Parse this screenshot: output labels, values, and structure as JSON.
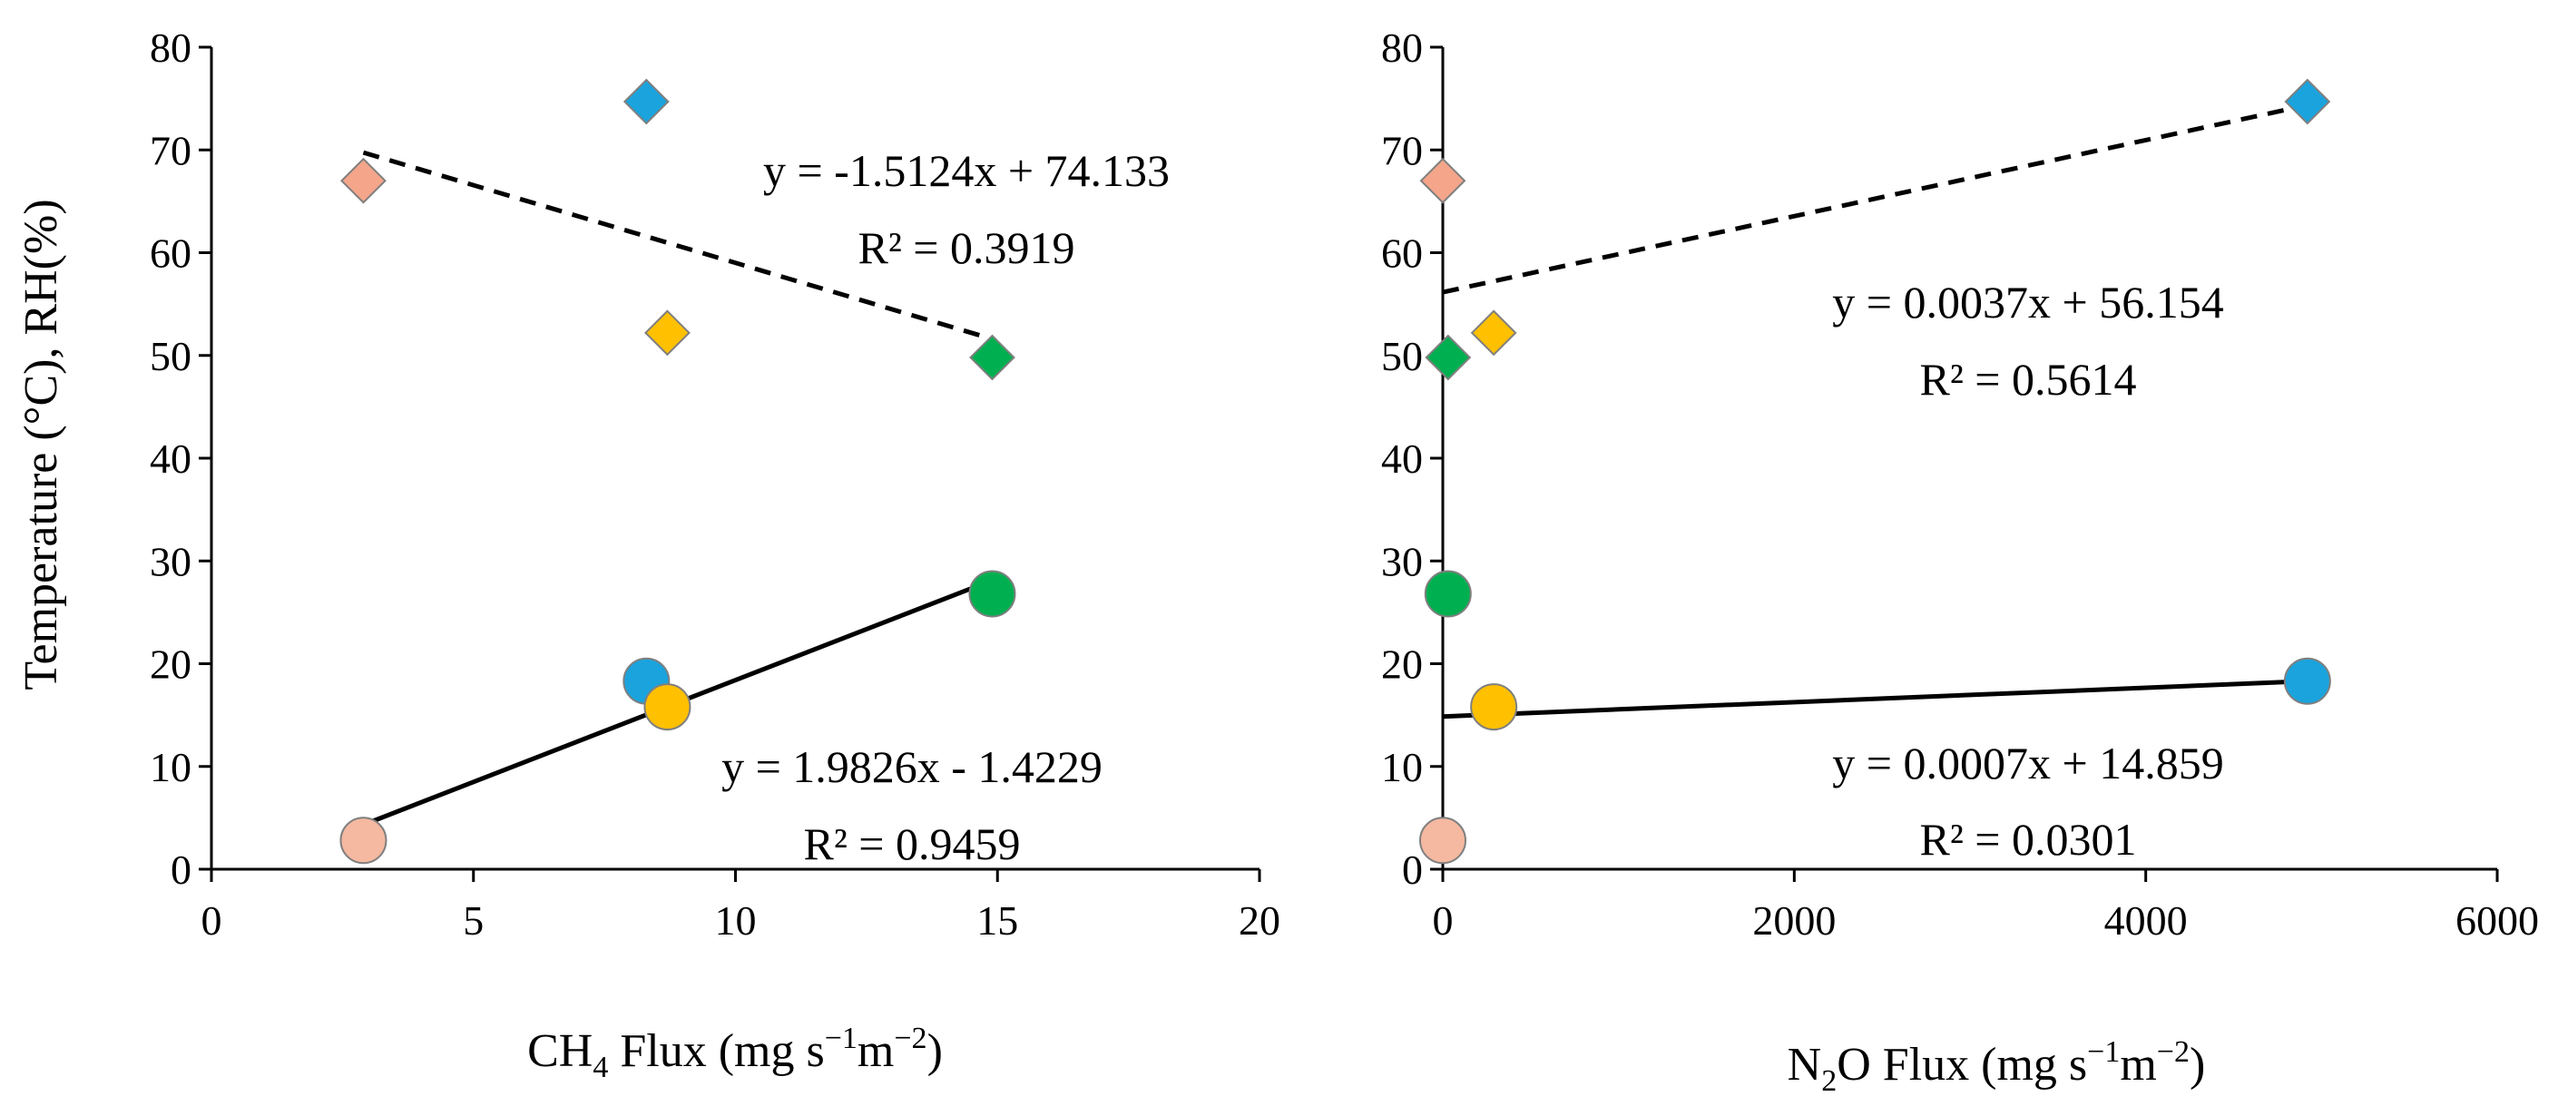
{
  "colors": {
    "winter": "#F5B8A0",
    "winter_diamond": "#F4A58A",
    "spring": "#FFC000",
    "summer": "#1AA3DD",
    "autumn": "#00B050",
    "marker_edge": "#7F7F7F",
    "axis": "#000000",
    "trend": "#000000"
  },
  "y_axis_title": "Temperature (°C), RH(%)",
  "chart_data": [
    {
      "type": "scatter",
      "id": "ch4",
      "xlabel_parts": {
        "a": "CH",
        "sub": "4",
        "b": " Flux (mg s",
        "sup1": "−1",
        "c": "m",
        "sup2": "−2",
        "d": ")"
      },
      "xlim": [
        0,
        20
      ],
      "xticks": [
        0,
        5,
        10,
        15,
        20
      ],
      "xtick_labels": [
        "0",
        "5",
        "10",
        "15",
        "20"
      ],
      "ylim": [
        0,
        80
      ],
      "yticks": [
        0,
        10,
        20,
        30,
        40,
        50,
        60,
        70,
        80
      ],
      "ytick_labels": [
        "0",
        "10",
        "20",
        "30",
        "40",
        "50",
        "60",
        "70",
        "80"
      ],
      "series": [
        {
          "name": "RH",
          "marker": "diamond",
          "points": [
            {
              "x": 2.9,
              "y": 67,
              "color": "#F4A58A"
            },
            {
              "x": 8.3,
              "y": 74.7,
              "color": "#1AA3DD"
            },
            {
              "x": 8.7,
              "y": 52.2,
              "color": "#FFC000"
            },
            {
              "x": 14.9,
              "y": 49.8,
              "color": "#00B050"
            }
          ],
          "trend": {
            "slope": -1.5124,
            "intercept": 74.133,
            "x0": 2.9,
            "x1": 14.9,
            "dashed": true
          },
          "equation": "y = -1.5124x + 74.133",
          "r2": "R² = 0.3919"
        },
        {
          "name": "Temperature",
          "marker": "circle",
          "points": [
            {
              "x": 2.9,
              "y": 2.8,
              "color": "#F5B8A0"
            },
            {
              "x": 8.3,
              "y": 18.3,
              "color": "#1AA3DD"
            },
            {
              "x": 8.7,
              "y": 15.8,
              "color": "#FFC000"
            },
            {
              "x": 14.9,
              "y": 26.8,
              "color": "#00B050"
            }
          ],
          "trend": {
            "slope": 1.9826,
            "intercept": -1.4229,
            "x0": 2.9,
            "x1": 14.9,
            "dashed": false
          },
          "equation": "y = 1.9826x - 1.4229",
          "r2": "R² = 0.9459"
        }
      ]
    },
    {
      "type": "scatter",
      "id": "n2o",
      "xlabel_parts": {
        "a": "N",
        "sub": "2",
        "b": "O Flux (mg s",
        "sup1": "−1",
        "c": "m",
        "sup2": "−2",
        "d": ")"
      },
      "xlim": [
        0,
        6000
      ],
      "xticks": [
        0,
        2000,
        4000,
        6000
      ],
      "xtick_labels": [
        "0",
        "2000",
        "4000",
        "6000"
      ],
      "ylim": [
        0,
        80
      ],
      "yticks": [
        0,
        10,
        20,
        30,
        40,
        50,
        60,
        70,
        80
      ],
      "ytick_labels": [
        "0",
        "10",
        "20",
        "30",
        "40",
        "50",
        "60",
        "70",
        "80"
      ],
      "series": [
        {
          "name": "RH",
          "marker": "diamond",
          "points": [
            {
              "x": 0,
              "y": 67,
              "color": "#F4A58A"
            },
            {
              "x": 4920,
              "y": 74.7,
              "color": "#1AA3DD"
            },
            {
              "x": 290,
              "y": 52.2,
              "color": "#FFC000"
            },
            {
              "x": 30,
              "y": 49.8,
              "color": "#00B050"
            }
          ],
          "trend": {
            "slope": 0.0037,
            "intercept": 56.154,
            "x0": 0,
            "x1": 4920,
            "dashed": true
          },
          "equation": "y = 0.0037x + 56.154",
          "r2": "R² = 0.5614"
        },
        {
          "name": "Temperature",
          "marker": "circle",
          "points": [
            {
              "x": 0,
              "y": 2.8,
              "color": "#F5B8A0"
            },
            {
              "x": 4920,
              "y": 18.3,
              "color": "#1AA3DD"
            },
            {
              "x": 290,
              "y": 15.8,
              "color": "#FFC000"
            },
            {
              "x": 30,
              "y": 26.8,
              "color": "#00B050"
            }
          ],
          "trend": {
            "slope": 0.0007,
            "intercept": 14.859,
            "x0": 0,
            "x1": 4920,
            "dashed": false
          },
          "equation": "y = 0.0007x + 14.859",
          "r2": "R² = 0.0301"
        }
      ]
    }
  ]
}
